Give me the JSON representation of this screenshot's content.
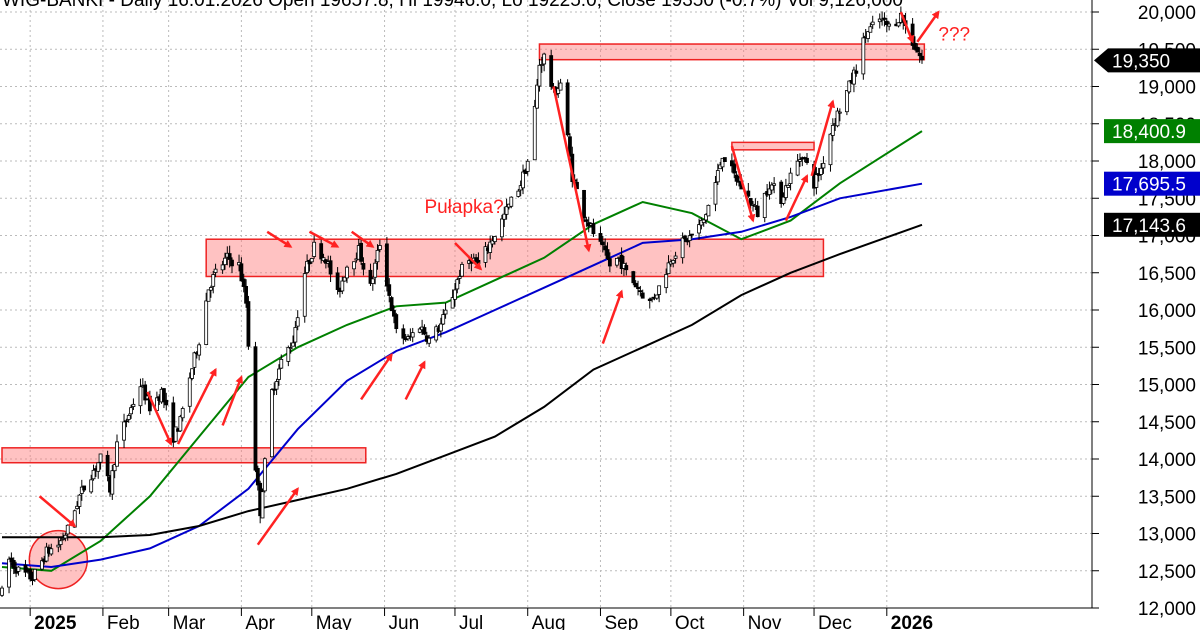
{
  "header": {
    "text": "WIG-BANKI - Daily 16.01.2026 Open 19657.8, Hi 19946.0, Lo 19225.0, Close 19350 (-0.7%) Vol 9,126,000"
  },
  "chart_data": {
    "type": "candlestick",
    "title": "WIG-BANKI - Daily",
    "x_labels": [
      {
        "label": "2025",
        "year": true
      },
      {
        "label": "Feb"
      },
      {
        "label": "Mar"
      },
      {
        "label": "Apr"
      },
      {
        "label": "May"
      },
      {
        "label": "Jun"
      },
      {
        "label": "Jul"
      },
      {
        "label": "Aug"
      },
      {
        "label": "Sep"
      },
      {
        "label": "Oct"
      },
      {
        "label": "Nov"
      },
      {
        "label": "Dec"
      },
      {
        "label": "2026",
        "year": true
      }
    ],
    "y_ticks": [
      "12,000",
      "12,500",
      "13,000",
      "13,500",
      "14,000",
      "14,500",
      "15,000",
      "15,500",
      "16,000",
      "16,500",
      "17,000",
      "17,500",
      "18,000",
      "18,500",
      "19,000",
      "19,500",
      "20,000"
    ],
    "ylim": [
      11900,
      20150
    ],
    "x_range": [
      "2024-12-20",
      "2026-01-16"
    ],
    "grid": true,
    "price_path": [
      [
        "2024-12-20",
        12200
      ],
      [
        "2024-12-23",
        12650
      ],
      [
        "2024-12-27",
        12500
      ],
      [
        "2025-01-02",
        12400
      ],
      [
        "2025-01-08",
        12750
      ],
      [
        "2025-01-13",
        12850
      ],
      [
        "2025-01-17",
        13050
      ],
      [
        "2025-01-22",
        13500
      ],
      [
        "2025-01-27",
        13800
      ],
      [
        "2025-01-31",
        14000
      ],
      [
        "2025-02-04",
        13600
      ],
      [
        "2025-02-07",
        14200
      ],
      [
        "2025-02-12",
        14600
      ],
      [
        "2025-02-17",
        15000
      ],
      [
        "2025-02-21",
        14700
      ],
      [
        "2025-02-26",
        14900
      ],
      [
        "2025-03-03",
        14300
      ],
      [
        "2025-03-06",
        14500
      ],
      [
        "2025-03-10",
        15100
      ],
      [
        "2025-03-14",
        15600
      ],
      [
        "2025-03-18",
        16300
      ],
      [
        "2025-03-21",
        16500
      ],
      [
        "2025-03-26",
        16700
      ],
      [
        "2025-03-31",
        16600
      ],
      [
        "2025-04-03",
        16100
      ],
      [
        "2025-04-07",
        13900
      ],
      [
        "2025-04-09",
        13300
      ],
      [
        "2025-04-14",
        14900
      ],
      [
        "2025-04-18",
        15300
      ],
      [
        "2025-04-23",
        15600
      ],
      [
        "2025-04-28",
        16500
      ],
      [
        "2025-05-02",
        16850
      ],
      [
        "2025-05-07",
        16700
      ],
      [
        "2025-05-12",
        16200
      ],
      [
        "2025-05-16",
        16600
      ],
      [
        "2025-05-21",
        16800
      ],
      [
        "2025-05-26",
        16300
      ],
      [
        "2025-05-30",
        16900
      ],
      [
        "2025-06-03",
        16200
      ],
      [
        "2025-06-06",
        15700
      ],
      [
        "2025-06-11",
        15600
      ],
      [
        "2025-06-16",
        15800
      ],
      [
        "2025-06-20",
        15600
      ],
      [
        "2025-06-25",
        15800
      ],
      [
        "2025-06-30",
        16200
      ],
      [
        "2025-07-03",
        16500
      ],
      [
        "2025-07-08",
        16700
      ],
      [
        "2025-07-11",
        16600
      ],
      [
        "2025-07-16",
        16900
      ],
      [
        "2025-07-21",
        17200
      ],
      [
        "2025-07-24",
        17400
      ],
      [
        "2025-07-29",
        17700
      ],
      [
        "2025-08-01",
        18000
      ],
      [
        "2025-08-04",
        18700
      ],
      [
        "2025-08-06",
        19300
      ],
      [
        "2025-08-08",
        19400
      ],
      [
        "2025-08-12",
        18900
      ],
      [
        "2025-08-15",
        19050
      ],
      [
        "2025-08-20",
        17800
      ],
      [
        "2025-08-25",
        17300
      ],
      [
        "2025-08-28",
        17100
      ],
      [
        "2025-09-02",
        16800
      ],
      [
        "2025-09-05",
        16600
      ],
      [
        "2025-09-09",
        16700
      ],
      [
        "2025-09-12",
        16500
      ],
      [
        "2025-09-17",
        16300
      ],
      [
        "2025-09-22",
        16100
      ],
      [
        "2025-09-26",
        16300
      ],
      [
        "2025-10-01",
        16700
      ],
      [
        "2025-10-06",
        16900
      ],
      [
        "2025-10-10",
        17000
      ],
      [
        "2025-10-15",
        17200
      ],
      [
        "2025-10-20",
        17700
      ],
      [
        "2025-10-23",
        18100
      ],
      [
        "2025-10-28",
        17800
      ],
      [
        "2025-11-03",
        17500
      ],
      [
        "2025-11-07",
        17300
      ],
      [
        "2025-11-12",
        17700
      ],
      [
        "2025-11-17",
        17500
      ],
      [
        "2025-11-21",
        17800
      ],
      [
        "2025-11-26",
        18100
      ],
      [
        "2025-12-01",
        17700
      ],
      [
        "2025-12-04",
        17900
      ],
      [
        "2025-12-09",
        18500
      ],
      [
        "2025-12-12",
        18700
      ],
      [
        "2025-12-16",
        19000
      ],
      [
        "2025-12-19",
        19250
      ],
      [
        "2025-12-23",
        19700
      ],
      [
        "2025-12-29",
        19900
      ],
      [
        "2026-01-02",
        19800
      ],
      [
        "2026-01-07",
        19950
      ],
      [
        "2026-01-12",
        19600
      ],
      [
        "2026-01-16",
        19350
      ]
    ],
    "series": [
      {
        "name": "",
        "color": "#008000",
        "value_label": "18,400.9",
        "points": [
          [
            "2024-12-20",
            12550
          ],
          [
            "2025-01-10",
            12500
          ],
          [
            "2025-01-31",
            12900
          ],
          [
            "2025-02-21",
            13500
          ],
          [
            "2025-03-14",
            14300
          ],
          [
            "2025-04-04",
            15100
          ],
          [
            "2025-04-25",
            15500
          ],
          [
            "2025-05-16",
            15800
          ],
          [
            "2025-06-06",
            16050
          ],
          [
            "2025-06-27",
            16100
          ],
          [
            "2025-07-18",
            16400
          ],
          [
            "2025-08-08",
            16700
          ],
          [
            "2025-08-29",
            17150
          ],
          [
            "2025-09-19",
            17450
          ],
          [
            "2025-10-10",
            17300
          ],
          [
            "2025-10-31",
            16950
          ],
          [
            "2025-11-21",
            17200
          ],
          [
            "2025-12-12",
            17700
          ],
          [
            "2026-01-16",
            18400.9
          ]
        ]
      },
      {
        "name": "",
        "color": "#0000cc",
        "value_label": "17,695.5",
        "points": [
          [
            "2024-12-20",
            12600
          ],
          [
            "2025-01-10",
            12550
          ],
          [
            "2025-01-31",
            12650
          ],
          [
            "2025-02-21",
            12800
          ],
          [
            "2025-03-14",
            13100
          ],
          [
            "2025-04-04",
            13600
          ],
          [
            "2025-04-25",
            14400
          ],
          [
            "2025-05-16",
            15050
          ],
          [
            "2025-06-06",
            15450
          ],
          [
            "2025-06-27",
            15700
          ],
          [
            "2025-07-18",
            16000
          ],
          [
            "2025-08-08",
            16300
          ],
          [
            "2025-08-29",
            16600
          ],
          [
            "2025-09-19",
            16900
          ],
          [
            "2025-10-10",
            16950
          ],
          [
            "2025-10-31",
            17050
          ],
          [
            "2025-11-21",
            17250
          ],
          [
            "2025-12-12",
            17500
          ],
          [
            "2026-01-16",
            17695.5
          ]
        ]
      },
      {
        "name": "",
        "color": "#000000",
        "value_label": "17,143.6",
        "points": [
          [
            "2024-12-20",
            12950
          ],
          [
            "2025-01-10",
            12950
          ],
          [
            "2025-01-31",
            12950
          ],
          [
            "2025-02-21",
            12980
          ],
          [
            "2025-03-14",
            13100
          ],
          [
            "2025-04-04",
            13300
          ],
          [
            "2025-04-25",
            13450
          ],
          [
            "2025-05-16",
            13600
          ],
          [
            "2025-06-06",
            13800
          ],
          [
            "2025-06-27",
            14050
          ],
          [
            "2025-07-18",
            14300
          ],
          [
            "2025-08-08",
            14700
          ],
          [
            "2025-08-29",
            15200
          ],
          [
            "2025-09-19",
            15500
          ],
          [
            "2025-10-10",
            15800
          ],
          [
            "2025-10-31",
            16200
          ],
          [
            "2025-11-21",
            16500
          ],
          [
            "2025-12-12",
            16750
          ],
          [
            "2026-01-16",
            17143.6
          ]
        ]
      }
    ],
    "last_price_label": "19,350",
    "zones": [
      {
        "x_from": "2024-12-20",
        "x_to": "2025-05-24",
        "y_low": 13950,
        "y_high": 14150
      },
      {
        "x_from": "2025-03-17",
        "x_to": "2025-12-05",
        "y_low": 16450,
        "y_high": 16950
      },
      {
        "x_from": "2025-08-06",
        "x_to": "2026-01-17",
        "y_low": 19360,
        "y_high": 19570
      },
      {
        "x_from": "2025-10-27",
        "x_to": "2025-12-01",
        "y_low": 18150,
        "y_high": 18250
      }
    ],
    "circle": {
      "x": "2025-01-13",
      "y": 12650
    },
    "annotations": [
      {
        "text": "Pułapka?",
        "x": "2025-06-18",
        "y": 17300
      },
      {
        "text": "???",
        "x": "2026-01-23",
        "y": 19620
      }
    ],
    "arrows": [
      {
        "from": [
          "2025-01-05",
          13500
        ],
        "to": [
          "2025-01-20",
          13100
        ]
      },
      {
        "from": [
          "2025-02-20",
          14900
        ],
        "to": [
          "2025-03-02",
          14200
        ]
      },
      {
        "from": [
          "2025-03-05",
          14200
        ],
        "to": [
          "2025-03-21",
          15200
        ]
      },
      {
        "from": [
          "2025-03-24",
          14450
        ],
        "to": [
          "2025-04-01",
          15100
        ]
      },
      {
        "from": [
          "2025-04-08",
          12850
        ],
        "to": [
          "2025-04-25",
          13600
        ]
      },
      {
        "from": [
          "2025-04-12",
          17050
        ],
        "to": [
          "2025-04-22",
          16850
        ]
      },
      {
        "from": [
          "2025-04-30",
          17050
        ],
        "to": [
          "2025-05-12",
          16850
        ]
      },
      {
        "from": [
          "2025-05-18",
          17050
        ],
        "to": [
          "2025-05-27",
          16850
        ]
      },
      {
        "from": [
          "2025-05-22",
          14800
        ],
        "to": [
          "2025-06-04",
          15400
        ]
      },
      {
        "from": [
          "2025-06-10",
          14800
        ],
        "to": [
          "2025-06-18",
          15300
        ]
      },
      {
        "from": [
          "2025-07-01",
          16900
        ],
        "to": [
          "2025-07-12",
          16550
        ]
      },
      {
        "from": [
          "2025-08-12",
          19000
        ],
        "to": [
          "2025-08-27",
          16800
        ]
      },
      {
        "from": [
          "2025-09-02",
          15550
        ],
        "to": [
          "2025-09-10",
          16250
        ]
      },
      {
        "from": [
          "2025-10-27",
          18200
        ],
        "to": [
          "2025-11-05",
          17200
        ]
      },
      {
        "from": [
          "2025-11-19",
          17200
        ],
        "to": [
          "2025-11-28",
          17800
        ]
      },
      {
        "from": [
          "2025-11-30",
          17800
        ],
        "to": [
          "2025-12-09",
          18800
        ]
      },
      {
        "from": [
          "2026-01-07",
          20000
        ],
        "to": [
          "2026-01-12",
          19600
        ]
      },
      {
        "from": [
          "2026-01-14",
          19600
        ],
        "to": [
          "2026-01-23",
          20000
        ]
      }
    ]
  }
}
